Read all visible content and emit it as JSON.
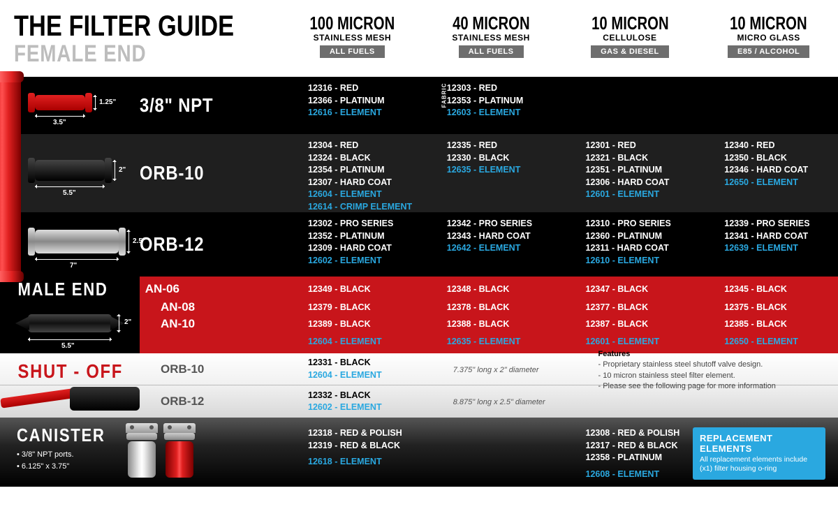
{
  "title": {
    "main": "THE FILTER GUIDE",
    "sub": "FEMALE END"
  },
  "columns": [
    {
      "micron": "100 MICRON",
      "mesh": "STAINLESS MESH",
      "badge": "ALL FUELS",
      "badge_bg": "#6e6e6e"
    },
    {
      "micron": "40 MICRON",
      "mesh": "STAINLESS MESH",
      "badge": "ALL FUELS",
      "badge_bg": "#6e6e6e"
    },
    {
      "micron": "10 MICRON",
      "mesh": "CELLULOSE",
      "badge": "GAS & DIESEL",
      "badge_bg": "#6e6e6e"
    },
    {
      "micron": "10 MICRON",
      "mesh": "MICRO GLASS",
      "badge": "E85 / ALCOHOL",
      "badge_bg": "#6e6e6e"
    }
  ],
  "female_rows": [
    {
      "label": "3/8\" NPT",
      "len": "3.5\"",
      "dia": "1.25\"",
      "icon_color": "red",
      "cells": [
        {
          "lines": [
            "12316 - RED",
            "12366 - PLATINUM"
          ],
          "elems": [
            "12616 - ELEMENT"
          ]
        },
        {
          "fabric": "FABRIC",
          "lines": [
            "12303 - RED",
            "12353 - PLATINUM"
          ],
          "elems": [
            "12603 - ELEMENT"
          ]
        },
        {
          "lines": [],
          "elems": []
        },
        {
          "lines": [],
          "elems": []
        }
      ]
    },
    {
      "label": "ORB-10",
      "len": "5.5\"",
      "dia": "2\"",
      "icon_color": "black",
      "cells": [
        {
          "lines": [
            "12304 - RED",
            "12324 - BLACK",
            "12354 - PLATINUM",
            "12307 - HARD COAT"
          ],
          "elems": [
            "12604 - ELEMENT",
            "12614 - CRIMP ELEMENT"
          ]
        },
        {
          "lines": [
            "12335 - RED",
            "12330 - BLACK"
          ],
          "elems": [
            "12635 - ELEMENT"
          ]
        },
        {
          "lines": [
            "12301 - RED",
            "12321 - BLACK",
            "12351 - PLATINUM",
            "12306 - HARD COAT"
          ],
          "elems": [
            "12601 - ELEMENT"
          ]
        },
        {
          "lines": [
            "12340 - RED",
            "12350 - BLACK",
            "12346 - HARD COAT"
          ],
          "elems": [
            "12650 - ELEMENT"
          ]
        }
      ]
    },
    {
      "label": "ORB-12",
      "len": "7\"",
      "dia": "2.5\"",
      "icon_color": "silver",
      "cells": [
        {
          "lines": [
            "12302 - PRO SERIES",
            "12352 - PLATINUM",
            "12309 - HARD COAT"
          ],
          "elems": [
            "12602 - ELEMENT"
          ]
        },
        {
          "lines": [
            "12342 - PRO SERIES",
            "12343 - HARD COAT"
          ],
          "elems": [
            "12642 - ELEMENT"
          ]
        },
        {
          "lines": [
            "12310 - PRO SERIES",
            "12360 - PLATINUM",
            "12311 - HARD COAT"
          ],
          "elems": [
            "12610 - ELEMENT"
          ]
        },
        {
          "lines": [
            "12339 - PRO SERIES",
            "12341 - HARD COAT"
          ],
          "elems": [
            "12639 - ELEMENT"
          ]
        }
      ]
    }
  ],
  "male": {
    "title": "MALE END",
    "len": "5.5\"",
    "dia": "2\"",
    "rows": [
      {
        "an": "AN-06",
        "cells": [
          "12349 - BLACK",
          "12348 - BLACK",
          "12347 - BLACK",
          "12345 - BLACK"
        ]
      },
      {
        "an": "AN-08",
        "cells": [
          "12379 - BLACK",
          "12378 - BLACK",
          "12377 - BLACK",
          "12375 - BLACK"
        ]
      },
      {
        "an": "AN-10",
        "cells": [
          "12389 - BLACK",
          "12388 - BLACK",
          "12387 - BLACK",
          "12385 - BLACK"
        ]
      }
    ],
    "elems": [
      "12604 - ELEMENT",
      "12635 - ELEMENT",
      "12601 - ELEMENT",
      "12650 - ELEMENT"
    ]
  },
  "shutoff": {
    "title": "SHUT - OFF",
    "rows": [
      {
        "label": "ORB-10",
        "part": "12331 - BLACK",
        "elem": "12604 - ELEMENT",
        "dim": "7.375\" long x 2\" diameter"
      },
      {
        "label": "ORB-12",
        "part": "12332 - BLACK",
        "elem": "12602 - ELEMENT",
        "dim": "8.875\" long x 2.5\" diameter"
      }
    ],
    "features_title": "Features",
    "features": [
      "- Proprietary stainless steel shutoff valve design.",
      "- 10 micron stainless steel filter element.",
      "- Please see the following page for more information"
    ]
  },
  "canister": {
    "title": "CANISTER",
    "bullets": [
      "• 3/8\" NPT ports.",
      "• 6.125\" x 3.75\""
    ],
    "cells": [
      {
        "lines": [
          "12318 - RED & POLISH",
          "12319 - RED & BLACK"
        ],
        "elems": [
          "12618 - ELEMENT"
        ]
      },
      {
        "lines": [],
        "elems": []
      },
      {
        "lines": [
          "12308 - RED & POLISH",
          "12317 - RED & BLACK",
          "12358 - PLATINUM"
        ],
        "elems": [
          "12608 - ELEMENT"
        ]
      },
      {
        "lines": [],
        "elems": []
      }
    ]
  },
  "replacement": {
    "title": "REPLACEMENT ELEMENTS",
    "body": "All replacement elements include (x1) filter housing o-ring"
  },
  "colors": {
    "accent_blue": "#2aa8e0",
    "brand_red": "#c8151b",
    "badge_gray": "#6e6e6e",
    "dark_row": "#1f1f1f"
  }
}
